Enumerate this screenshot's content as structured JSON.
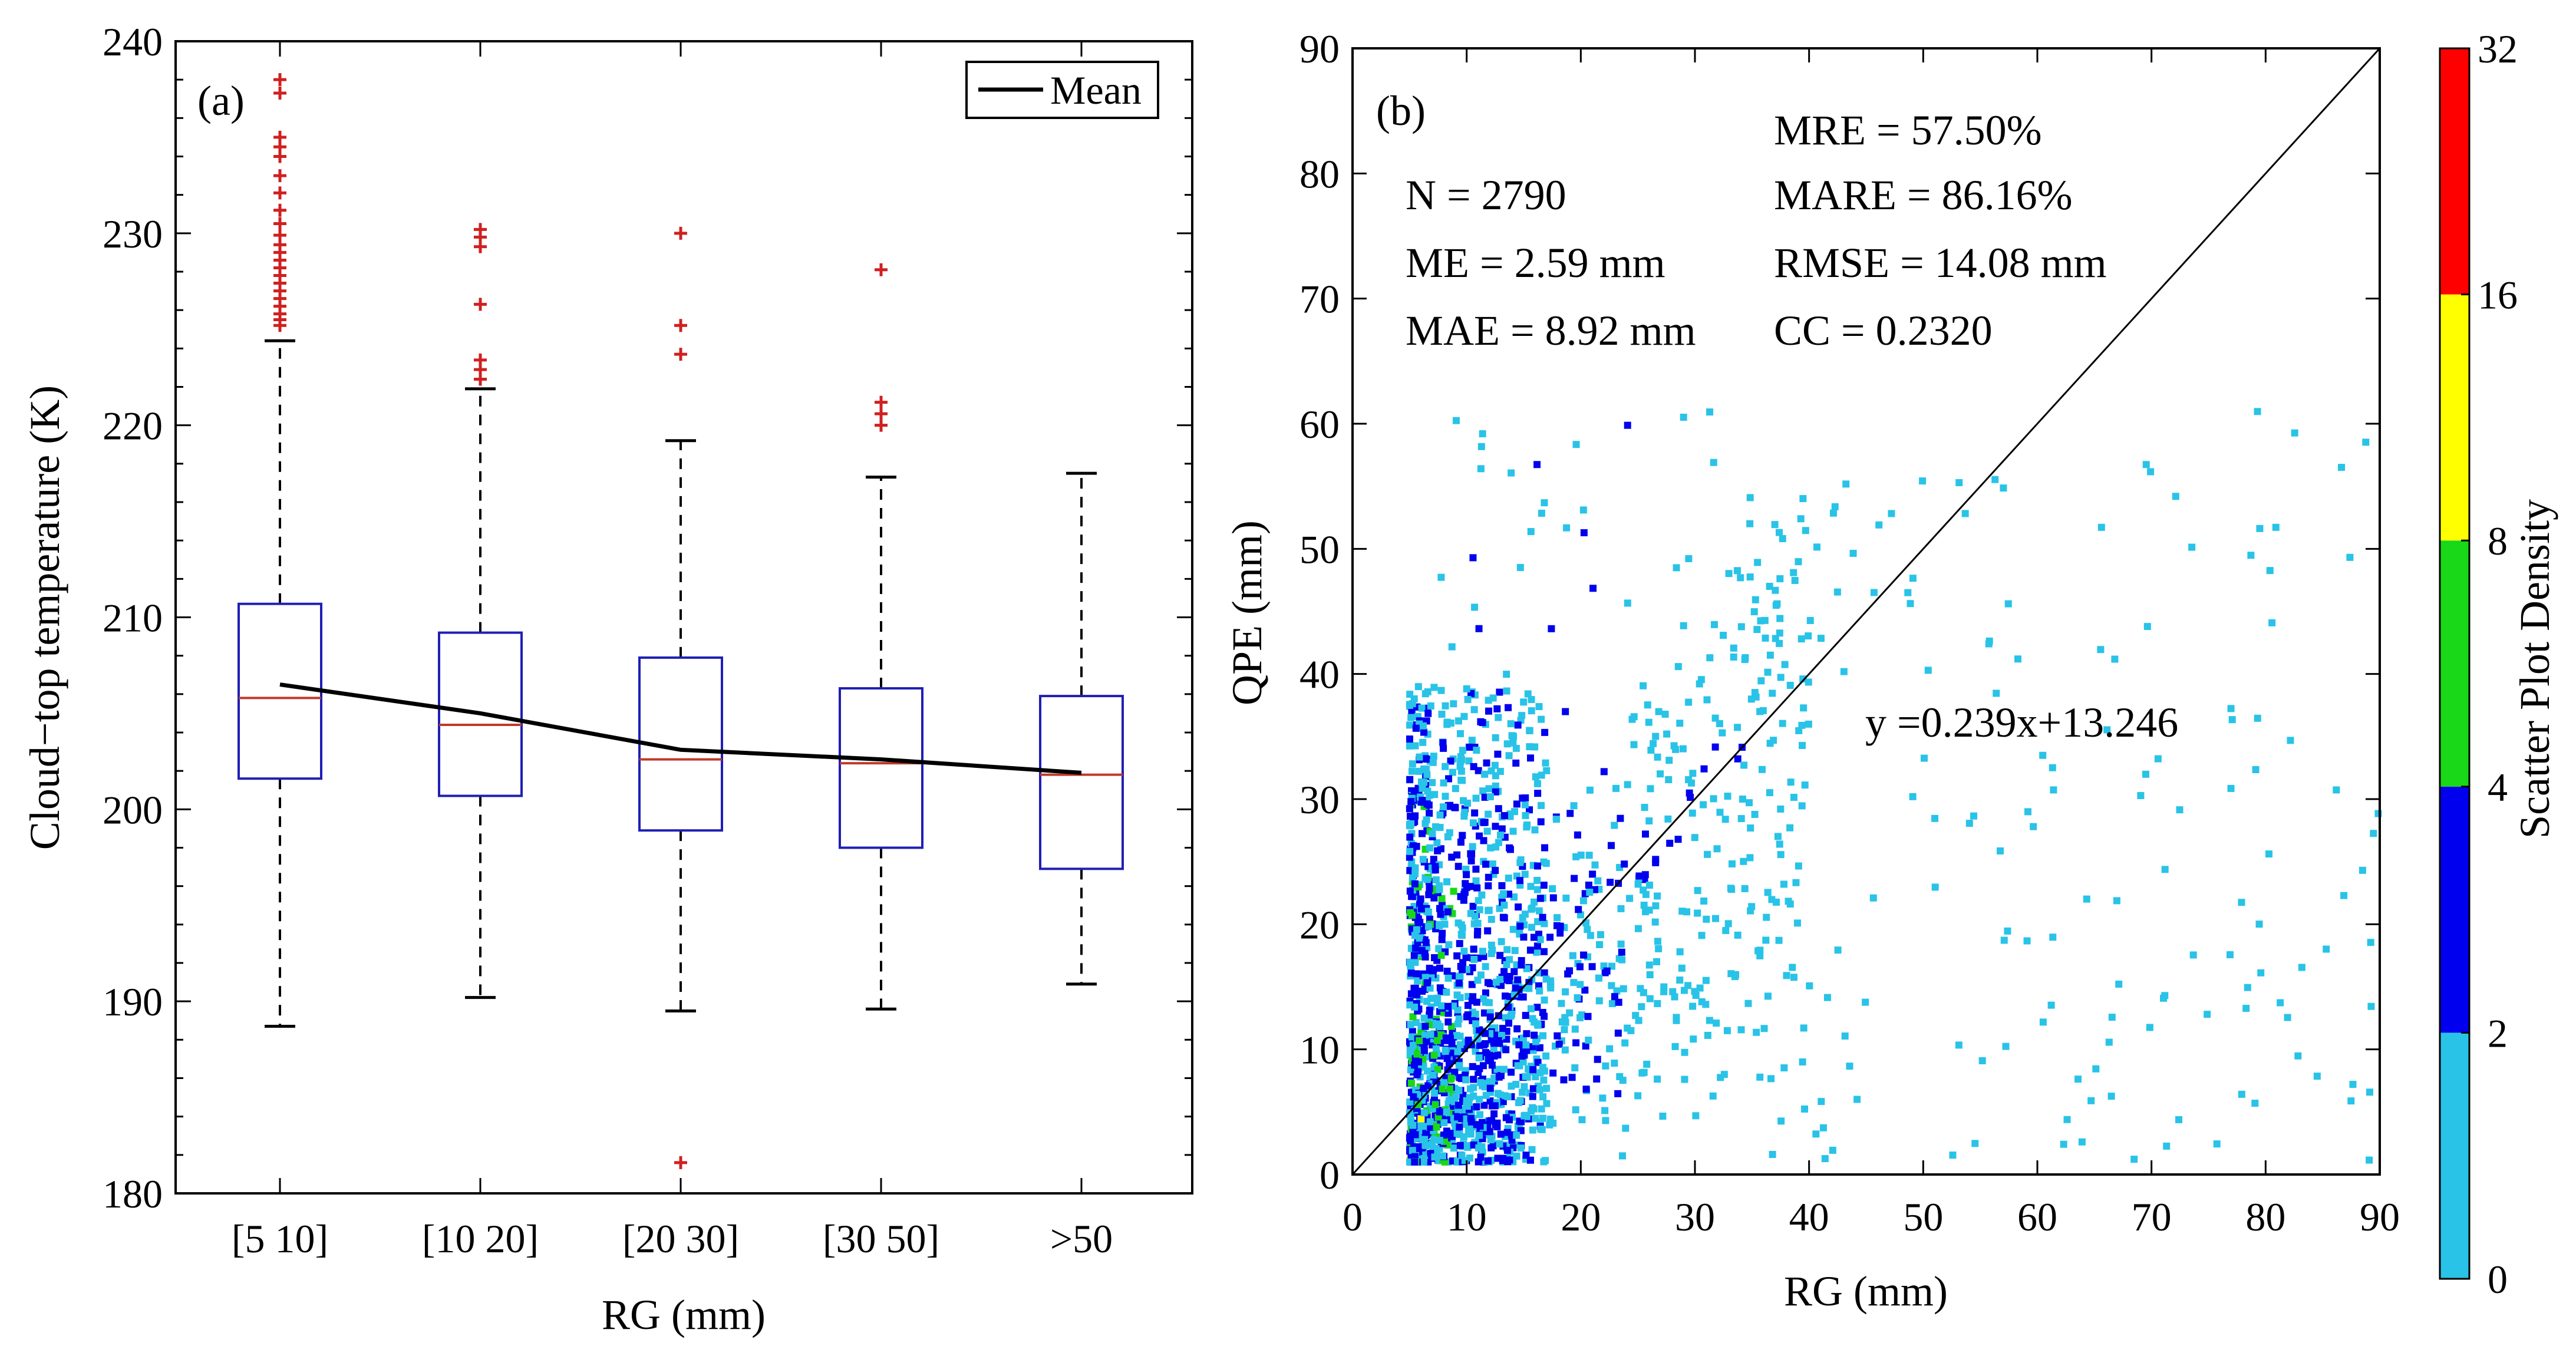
{
  "chart_data": [
    {
      "type": "box",
      "panel_label": "(a)",
      "xlabel": "RG (mm)",
      "ylabel": "Cloud−top temperature (K)",
      "ylim": [
        180,
        240
      ],
      "yticks": [
        180,
        190,
        200,
        210,
        220,
        230,
        240
      ],
      "ytick_labels": [
        "180",
        "190",
        "200",
        "210",
        "220",
        "230",
        "240"
      ],
      "categories": [
        "[5 10]",
        "[10 20]",
        "[20 30]",
        "[30 50]",
        ">50"
      ],
      "legend": {
        "label": "Mean",
        "placement": "top-right"
      },
      "boxes": [
        {
          "lower_whisker": 188.7,
          "q1": 201.6,
          "median": 205.8,
          "q3": 210.7,
          "upper_whisker": 224.4,
          "outliers": [
            225.2,
            225.5,
            225.8,
            226.2,
            226.6,
            227.0,
            227.4,
            227.8,
            228.2,
            228.6,
            229.0,
            229.4,
            229.9,
            230.5,
            231.2,
            232.1,
            233.0,
            234.0,
            234.5,
            235.0,
            237.3,
            238.0
          ]
        },
        {
          "lower_whisker": 190.2,
          "q1": 200.7,
          "median": 204.4,
          "q3": 209.2,
          "upper_whisker": 221.9,
          "outliers": [
            222.4,
            222.9,
            223.4,
            226.3,
            229.3,
            229.8,
            230.2
          ]
        },
        {
          "lower_whisker": 189.5,
          "q1": 198.9,
          "median": 202.6,
          "q3": 207.9,
          "upper_whisker": 219.2,
          "outliers": [
            181.6,
            223.7,
            225.2,
            230.0
          ]
        },
        {
          "lower_whisker": 189.6,
          "q1": 198.0,
          "median": 202.4,
          "q3": 206.3,
          "upper_whisker": 217.3,
          "outliers": [
            220.0,
            220.6,
            221.2,
            228.1
          ]
        },
        {
          "lower_whisker": 190.9,
          "q1": 196.9,
          "median": 201.8,
          "q3": 205.9,
          "upper_whisker": 217.5,
          "outliers": []
        }
      ],
      "mean": [
        206.5,
        205.0,
        203.1,
        202.6,
        201.9
      ],
      "colors": {
        "box": "#1f1fb4",
        "median": "#c0392b",
        "outlier": "#d02020",
        "mean": "#000000"
      }
    },
    {
      "type": "scatter",
      "panel_label": "(b)",
      "xlabel": "RG (mm)",
      "ylabel": "QPE (mm)",
      "xlim": [
        0,
        90
      ],
      "ylim": [
        0,
        90
      ],
      "xticks": [
        0,
        10,
        20,
        30,
        40,
        50,
        60,
        70,
        80,
        90
      ],
      "xtick_labels": [
        "0",
        "10",
        "20",
        "30",
        "40",
        "50",
        "60",
        "70",
        "80",
        "90"
      ],
      "yticks": [
        0,
        10,
        20,
        30,
        40,
        50,
        60,
        70,
        80,
        90
      ],
      "ytick_labels": [
        "0",
        "10",
        "20",
        "30",
        "40",
        "50",
        "60",
        "70",
        "80",
        "90"
      ],
      "stats": {
        "n": "N = 2790",
        "me": "ME = 2.59 mm",
        "mae": "MAE = 8.92 mm",
        "mre": "MRE = 57.50%",
        "mare": "MARE = 86.16%",
        "rmse": "RMSE = 14.08 mm",
        "cc": "CC = 0.2320"
      },
      "fit_label": "y =0.239x+13.246",
      "fit": {
        "slope": 0.239,
        "intercept": 13.246
      },
      "reference_line": {
        "slope": 1,
        "intercept": 0
      },
      "n_points": 2790,
      "colorbar": {
        "label": "Scatter Plot Density",
        "ticks": [
          "0",
          "2",
          "4",
          "8",
          "16",
          "32"
        ],
        "colors": [
          "#29c3e8",
          "#0000ee",
          "#18d818",
          "#ffff00",
          "#ff0000"
        ]
      }
    }
  ]
}
